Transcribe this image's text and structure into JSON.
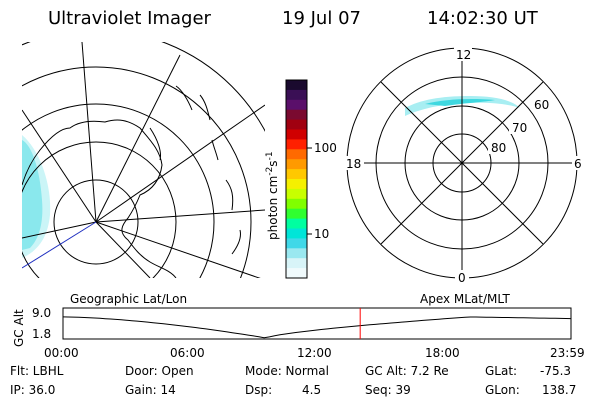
{
  "header": {
    "title": "Ultraviolet Imager",
    "date": "19 Jul 07",
    "time": "14:02:30 UT"
  },
  "colorbar": {
    "label": "photon cm",
    "label_sup1": "-2",
    "label_s": "s",
    "label_sup2": "-1",
    "ticks": [
      "100",
      "10"
    ],
    "colors": [
      "#1a0a2e",
      "#3a0f55",
      "#5a0f6a",
      "#7a0a30",
      "#a00010",
      "#d00000",
      "#ff2000",
      "#ff6a00",
      "#ff9a00",
      "#ffc800",
      "#f5f000",
      "#c8ff00",
      "#80ff00",
      "#30ff30",
      "#00ffa0",
      "#00e5d8",
      "#40d8e8",
      "#9ae8f0",
      "#d8f4f8",
      "#f0fafc"
    ]
  },
  "polar_plot": {
    "hour_labels": {
      "top": "12",
      "bottom": "0",
      "left": "18",
      "right": "6"
    },
    "lat_labels": [
      "60",
      "70",
      "80"
    ]
  },
  "timeline": {
    "left_label": "Geographic Lat/Lon",
    "right_label": "Apex MLat/MLT",
    "axis_title": "GC Alt",
    "y_top": "9.0",
    "y_bottom": "1.8",
    "x_ticks": [
      "00:00",
      "06:00",
      "12:00",
      "18:00",
      "23:59"
    ],
    "marker_hour": 14.04,
    "marker_color": "#ff0000"
  },
  "footer": {
    "filter": "Flt: LBHL",
    "ip": "IP: 36.0",
    "door": "Door: Open",
    "gain": "Gain: 14",
    "mode": "Mode: Normal",
    "dsp_label": "Dsp:",
    "dsp_value": "4.5",
    "gc_alt": "GC Alt: 7.2 Re",
    "seq": "Seq: 39",
    "glat_label": "GLat:",
    "glat_value": "-75.3",
    "glon_label": "GLon:",
    "glon_value": "138.7"
  },
  "colors": {
    "aurora": "#3fd8e0",
    "aurora_light": "#a8eef2",
    "track": "#2030c0"
  }
}
